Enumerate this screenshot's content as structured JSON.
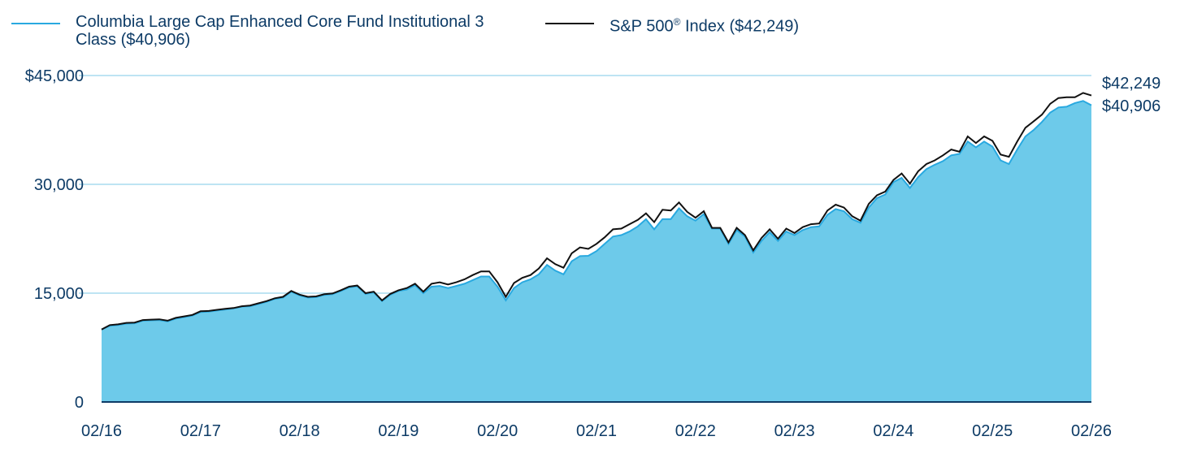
{
  "colors": {
    "fund_line": "#29a9e0",
    "fund_fill": "#6dcaea",
    "index_line": "#111111",
    "grid": "#a8dbef",
    "axis": "#0d3b66",
    "text": "#0d3b66"
  },
  "legend": {
    "fund_label_line1": "Columbia Large Cap Enhanced Core Fund Institutional 3",
    "fund_label_line2": "Class ($40,906)",
    "index_label_pre": "S&P 500",
    "index_label_sup": "®",
    "index_label_post": " Index ($42,249)"
  },
  "chart_data": {
    "type": "area",
    "x_tick_labels": [
      "02/16",
      "02/17",
      "02/18",
      "02/19",
      "02/20",
      "02/21",
      "02/22",
      "02/23",
      "02/24",
      "02/25",
      "02/26"
    ],
    "y_tick_labels": [
      "0",
      "15,000",
      "30,000",
      "$45,000"
    ],
    "y_ticks": [
      0,
      15000,
      30000,
      45000
    ],
    "ylim": [
      0,
      45000
    ],
    "x_start": "2016-02",
    "x_end": "2026-02",
    "end_labels": [
      "$42,249",
      "$40,906"
    ],
    "series": [
      {
        "name": "Columbia Large Cap Enhanced Core Fund Institutional 3 Class",
        "style": "area",
        "values": [
          10000,
          10500,
          10600,
          10800,
          10850,
          11200,
          11250,
          11300,
          11100,
          11500,
          11700,
          11900,
          12400,
          12450,
          12600,
          12750,
          12900,
          13150,
          13200,
          13500,
          13800,
          14200,
          14400,
          15200,
          14700,
          14400,
          14450,
          14750,
          14850,
          15300,
          15800,
          15950,
          14900,
          15100,
          13900,
          14800,
          15300,
          15500,
          16100,
          15000,
          15900,
          16000,
          15700,
          16000,
          16300,
          16800,
          17300,
          17300,
          15900,
          14000,
          15700,
          16500,
          16900,
          17600,
          18900,
          18100,
          17600,
          19400,
          20100,
          20150,
          20800,
          21800,
          22800,
          23000,
          23500,
          24200,
          25200,
          23800,
          25200,
          25200,
          26700,
          25600,
          25000,
          25900,
          23900,
          23900,
          21800,
          23700,
          22800,
          20600,
          22200,
          23400,
          22200,
          23500,
          23000,
          23700,
          24100,
          24200,
          25800,
          26600,
          26300,
          25200,
          24700,
          26800,
          28100,
          28600,
          30300,
          30900,
          29500,
          31000,
          32100,
          32700,
          33200,
          34000,
          34200,
          35900,
          35100,
          35900,
          35200,
          33300,
          32800,
          34800,
          36600,
          37500,
          38600,
          39900,
          40600,
          40700,
          41200,
          41500,
          40906
        ]
      },
      {
        "name": "S&P 500® Index",
        "style": "line",
        "values": [
          10000,
          10600,
          10700,
          10900,
          10950,
          11300,
          11350,
          11400,
          11200,
          11600,
          11800,
          12000,
          12500,
          12550,
          12700,
          12850,
          12950,
          13200,
          13300,
          13600,
          13900,
          14300,
          14500,
          15300,
          14800,
          14500,
          14550,
          14850,
          14950,
          15400,
          15900,
          16050,
          15000,
          15200,
          14000,
          14900,
          15400,
          15700,
          16300,
          15200,
          16300,
          16500,
          16200,
          16500,
          16900,
          17500,
          18000,
          18000,
          16500,
          14500,
          16400,
          17100,
          17500,
          18400,
          19800,
          19000,
          18500,
          20500,
          21300,
          21100,
          21800,
          22700,
          23800,
          23900,
          24500,
          25100,
          26000,
          24800,
          26500,
          26400,
          27500,
          26200,
          25400,
          26300,
          24000,
          24000,
          22000,
          24000,
          23000,
          20900,
          22600,
          23800,
          22500,
          23900,
          23300,
          24100,
          24500,
          24600,
          26400,
          27200,
          26800,
          25600,
          25000,
          27300,
          28500,
          29000,
          30600,
          31500,
          30100,
          31800,
          32800,
          33300,
          34000,
          34800,
          34500,
          36600,
          35700,
          36600,
          36000,
          34100,
          33800,
          35900,
          37800,
          38700,
          39600,
          41100,
          41900,
          42000,
          42000,
          42600,
          42249
        ]
      }
    ]
  }
}
